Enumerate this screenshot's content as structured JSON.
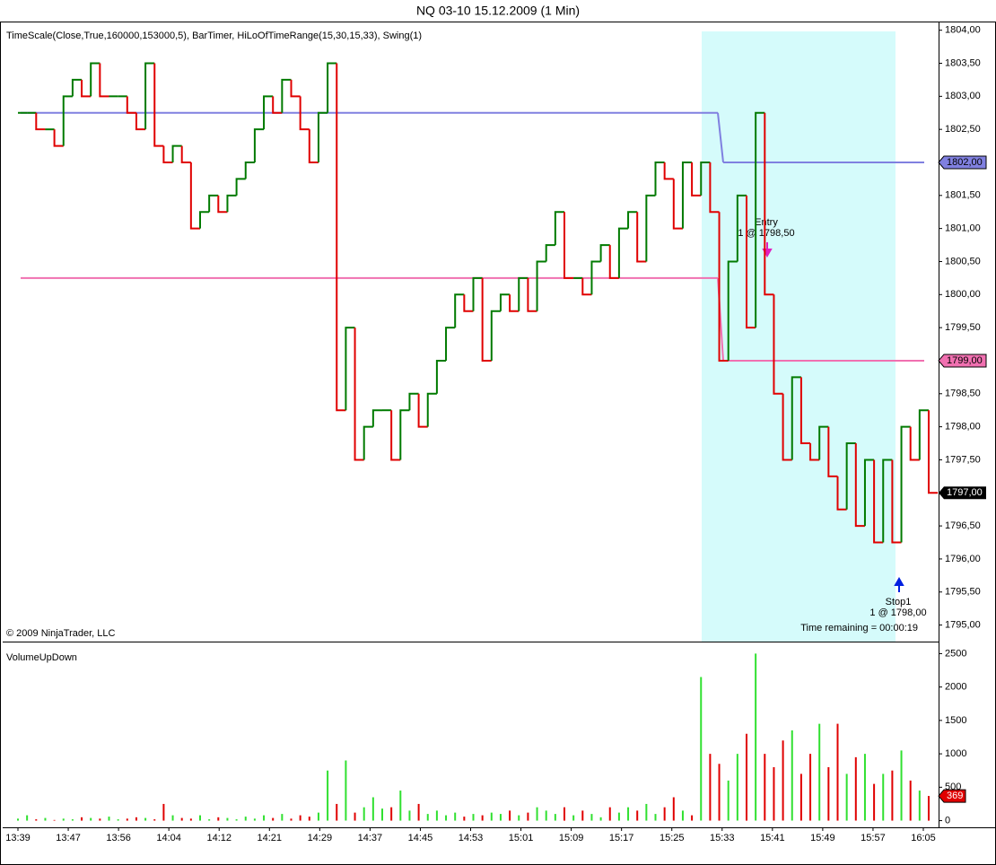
{
  "chart_data": {
    "type": "step",
    "title": "NQ 03-10  15.12.2009 (1 Min)",
    "indicators": "TimeScale(Close,True,160000,153000,5), BarTimer, HiLoOfTimeRange(15,30,15,33), Swing(1)",
    "copyright": "© 2009 NinjaTrader, LLC",
    "time_remaining": "Time remaining = 00:00:19",
    "entry": {
      "label": "Entry",
      "detail": "1 @ 1798,50"
    },
    "stop": {
      "label": "Stop1",
      "detail": "1 @ 1798,00"
    },
    "up_color": "#007a00",
    "down_color": "#e00000",
    "categories": [
      "13:39",
      "13:47",
      "13:56",
      "14:04",
      "14:12",
      "14:21",
      "14:29",
      "14:37",
      "14:45",
      "14:53",
      "15:01",
      "15:09",
      "15:17",
      "15:25",
      "15:33",
      "15:41",
      "15:49",
      "15:57",
      "16:05"
    ],
    "closes": [
      1802.75,
      1802.75,
      1802.5,
      1802.5,
      1802.25,
      1803,
      1803.25,
      1803,
      1803.5,
      1803,
      1803,
      1803,
      1802.75,
      1802.5,
      1803.5,
      1802.25,
      1802,
      1802.25,
      1802,
      1801,
      1801.25,
      1801.5,
      1801.25,
      1801.5,
      1801.75,
      1802,
      1802.5,
      1803,
      1802.75,
      1803.25,
      1803,
      1802.5,
      1802,
      1802.75,
      1803.5,
      1798.25,
      1799.5,
      1797.5,
      1798,
      1798.25,
      1798.25,
      1797.5,
      1798.25,
      1798.5,
      1798,
      1798.5,
      1799,
      1799.5,
      1800,
      1799.75,
      1800.25,
      1799,
      1799.75,
      1800,
      1799.75,
      1800.25,
      1799.75,
      1800.5,
      1800.75,
      1801.25,
      1800.25,
      1800.25,
      1800,
      1800.5,
      1800.75,
      1800.25,
      1801,
      1801.25,
      1800.5,
      1801.5,
      1802,
      1801.75,
      1801,
      1802,
      1801.5,
      1802,
      1801.25,
      1799,
      1800.5,
      1801.5,
      1799.5,
      1802.75,
      1800,
      1798.5,
      1797.5,
      1798.75,
      1797.75,
      1797.5,
      1798,
      1797.25,
      1796.75,
      1797.75,
      1796.5,
      1797.5,
      1796.25,
      1797.5,
      1796.25,
      1798,
      1797.5,
      1798.25,
      1797
    ],
    "ylim": [
      1794.75,
      1804.05
    ],
    "yticks": [
      {
        "value": 1795,
        "label": "1795,00"
      },
      {
        "value": 1795.5,
        "label": "1795,50"
      },
      {
        "value": 1796,
        "label": "1796,00"
      },
      {
        "value": 1796.5,
        "label": "1796,50"
      },
      {
        "value": 1797,
        "label": "1797,00"
      },
      {
        "value": 1797.5,
        "label": "1797,50"
      },
      {
        "value": 1798,
        "label": "1798,00"
      },
      {
        "value": 1798.5,
        "label": "1798,50"
      },
      {
        "value": 1799,
        "label": "1799,00"
      },
      {
        "value": 1799.5,
        "label": "1799,50"
      },
      {
        "value": 1800,
        "label": "1800,00"
      },
      {
        "value": 1800.5,
        "label": "1800,50"
      },
      {
        "value": 1801,
        "label": "1801,00"
      },
      {
        "value": 1801.5,
        "label": "1801,50"
      },
      {
        "value": 1802,
        "label": "1802,00"
      },
      {
        "value": 1802.5,
        "label": "1802,50"
      },
      {
        "value": 1803,
        "label": "1803,00"
      },
      {
        "value": 1803.5,
        "label": "1803,50"
      },
      {
        "value": 1804,
        "label": "1804,00"
      }
    ],
    "range_high": {
      "color": "#8080e0",
      "before": 1802.75,
      "after": 1802,
      "label": "1802,00"
    },
    "range_low": {
      "color": "#f070b0",
      "before": 1800.25,
      "after": 1799,
      "label": "1799,00"
    },
    "last_price": {
      "value": 1797,
      "label": "1797,00"
    },
    "volume": {
      "title": "VolumeUpDown",
      "values": [
        30,
        80,
        20,
        40,
        10,
        30,
        20,
        50,
        40,
        30,
        60,
        20,
        30,
        50,
        40,
        20,
        250,
        80,
        40,
        30,
        80,
        20,
        50,
        40,
        20,
        60,
        30,
        80,
        40,
        100,
        30,
        80,
        60,
        120,
        750,
        250,
        900,
        120,
        200,
        350,
        180,
        200,
        450,
        150,
        250,
        100,
        150,
        80,
        120,
        60,
        100,
        80,
        120,
        100,
        150,
        80,
        120,
        200,
        150,
        100,
        200,
        80,
        150,
        100,
        50,
        200,
        120,
        200,
        150,
        250,
        100,
        200,
        350,
        150,
        80,
        2150,
        1000,
        850,
        600,
        1000,
        1300,
        2500,
        1000,
        800,
        1200,
        1350,
        700,
        1000,
        1450,
        800,
        1450,
        700,
        950,
        1000,
        550,
        700,
        750,
        1050,
        600,
        450,
        369
      ],
      "ylim": [
        -100,
        2640
      ],
      "yticks": [
        0,
        500,
        1000,
        1500,
        2000,
        2500
      ],
      "last": 369
    }
  }
}
